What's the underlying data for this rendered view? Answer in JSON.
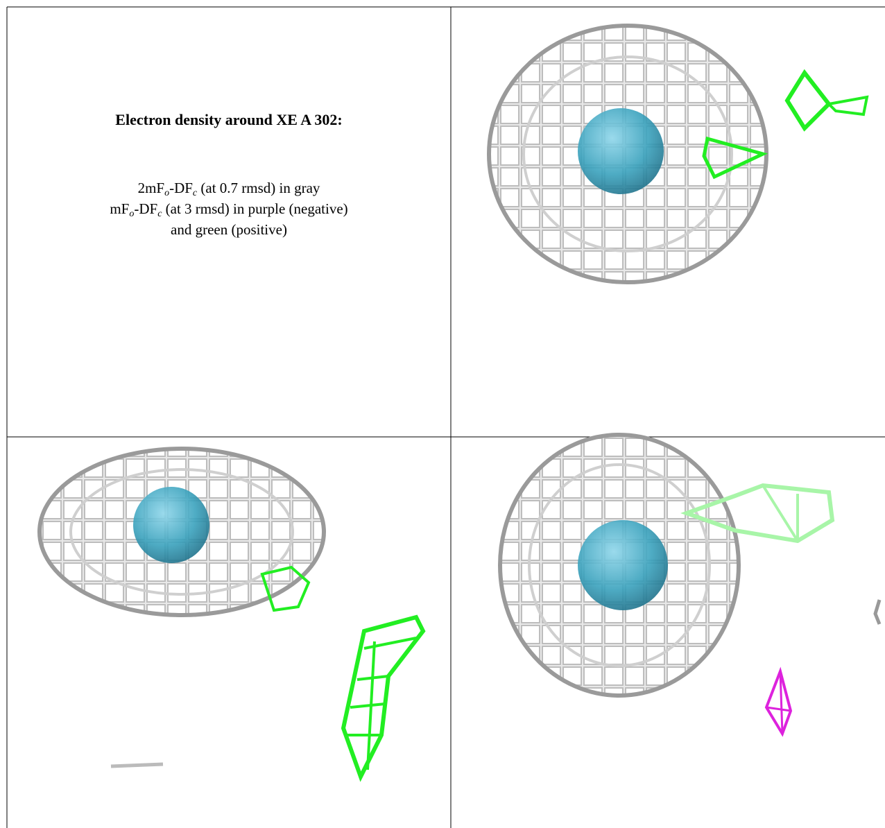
{
  "title": "Electron density around XE A 302:",
  "legend": {
    "line1": [
      "2mF",
      "o",
      "-DF",
      "c",
      " (at 0.7 rmsd) in gray"
    ],
    "line2": [
      "mF",
      "o",
      "-DF",
      "c",
      " (at 3 rmsd) in purple (negative)"
    ],
    "line3": "and green (positive)"
  }
}
